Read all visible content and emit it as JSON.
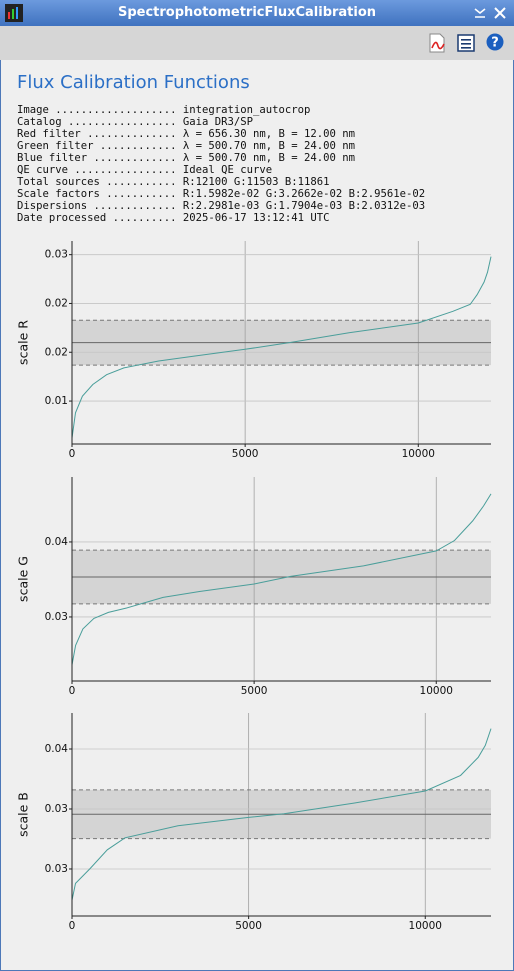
{
  "window": {
    "title": "SpectrophotometricFluxCalibration",
    "help_icon": "?"
  },
  "heading": "Flux Calibration Functions",
  "info": [
    "Image ................... integration_autocrop",
    "Catalog ................. Gaia DR3/SP",
    "Red filter .............. λ = 656.30 nm, B = 12.00 nm",
    "Green filter ............ λ = 500.70 nm, B = 24.00 nm",
    "Blue filter ............. λ = 500.70 nm, B = 24.00 nm",
    "QE curve ................ Ideal QE curve",
    "Total sources ........... R:12100 G:11503 B:11861",
    "Scale factors ........... R:1.5982e-02 G:3.2662e-02 B:2.9561e-02",
    "Dispersions ............. R:2.2981e-03 G:1.7904e-03 B:2.0312e-03",
    "Date processed .......... 2025-06-17 13:12:41 UTC"
  ],
  "chart_data": [
    {
      "type": "line",
      "y_label": "scale R",
      "color": "#4a9e9a",
      "x": [
        0,
        100,
        300,
        600,
        1000,
        1500,
        2500,
        3500,
        5000,
        6300,
        8000,
        10000,
        11000,
        11500,
        11700,
        11900,
        12000,
        12100
      ],
      "values": [
        0.0062,
        0.0088,
        0.0105,
        0.0117,
        0.0127,
        0.0134,
        0.0141,
        0.0146,
        0.0153,
        0.016,
        0.017,
        0.018,
        0.0192,
        0.0199,
        0.0209,
        0.0222,
        0.0232,
        0.0248
      ],
      "reference_lines": {
        "center": 0.015982,
        "band": [
          0.013684,
          0.01828
        ]
      },
      "xlim": [
        0,
        12100
      ],
      "ylim": [
        0.0056,
        0.0264
      ],
      "xticks": [
        0,
        5000,
        10000
      ],
      "yticks": [
        0.01,
        {
          "value": 0.015,
          "label": "0.02"
        },
        0.02,
        {
          "value": 0.025,
          "label": "0.03"
        }
      ],
      "grid": true
    },
    {
      "type": "line",
      "y_label": "scale G",
      "color": "#4a9e9a",
      "x": [
        0,
        100,
        300,
        600,
        1000,
        1500,
        2500,
        3500,
        5000,
        6000,
        8000,
        10000,
        10500,
        11000,
        11300,
        11503
      ],
      "values": [
        0.0268,
        0.0281,
        0.0292,
        0.0299,
        0.0303,
        0.0306,
        0.0313,
        0.0317,
        0.0322,
        0.0327,
        0.0334,
        0.0344,
        0.0351,
        0.0364,
        0.0374,
        0.0382
      ],
      "reference_lines": {
        "center": 0.032662,
        "band": [
          0.030872,
          0.034452
        ]
      },
      "xlim": [
        0,
        11503
      ],
      "ylim": [
        0.02573,
        0.03933
      ],
      "xticks": [
        0,
        5000,
        10000
      ],
      "yticks": [
        0.03,
        {
          "value": 0.035,
          "label": "0.04"
        }
      ],
      "grid": true
    },
    {
      "type": "line",
      "y_label": "scale B",
      "color": "#4a9e9a",
      "x": [
        0,
        100,
        500,
        1000,
        1500,
        3000,
        5000,
        6000,
        8000,
        10000,
        11000,
        11500,
        11700,
        11861
      ],
      "values": [
        0.0224,
        0.0238,
        0.025,
        0.0266,
        0.0276,
        0.0286,
        0.0293,
        0.0296,
        0.0305,
        0.0315,
        0.0328,
        0.0343,
        0.0353,
        0.0367
      ],
      "reference_lines": {
        "center": 0.029561,
        "band": [
          0.02753,
          0.031592
        ]
      },
      "xlim": [
        0,
        11861
      ],
      "ylim": [
        0.02108,
        0.038
      ],
      "xticks": [
        0,
        5000,
        10000
      ],
      "yticks": [
        {
          "value": 0.025,
          "label": "0.03"
        },
        0.03,
        {
          "value": 0.035,
          "label": "0.04"
        }
      ],
      "grid": true
    }
  ]
}
